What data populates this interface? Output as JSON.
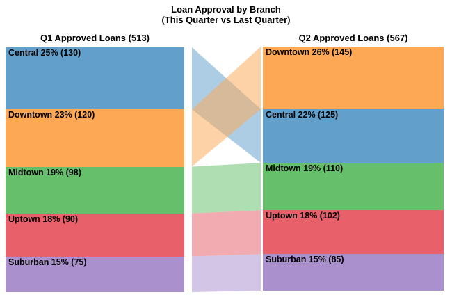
{
  "chart_data": {
    "type": "sankey",
    "title": "Loan Approval by Branch",
    "subtitle": "(This Quarter vs Last Quarter)",
    "background": "#ffffff",
    "text_color": "#000000",
    "ribbon_opacity": 0.52,
    "legend_position": "none",
    "branch_colors": {
      "Central": "#62a0cb",
      "Downtown": "#fca855",
      "Midtown": "#66bf6b",
      "Uptown": "#e7606a",
      "Suburban": "#ab90ce"
    },
    "columns": [
      {
        "header": "Q1 Approved Loans (513)",
        "total": 513,
        "segments": [
          {
            "branch": "Central",
            "percent": 25,
            "count": 130,
            "label": "Central 25% (130)",
            "color": "#62a0cb"
          },
          {
            "branch": "Downtown",
            "percent": 23,
            "count": 120,
            "label": "Downtown 23% (120)",
            "color": "#fca855"
          },
          {
            "branch": "Midtown",
            "percent": 19,
            "count": 98,
            "label": "Midtown 19% (98)",
            "color": "#66bf6b"
          },
          {
            "branch": "Uptown",
            "percent": 18,
            "count": 90,
            "label": "Uptown 18% (90)",
            "color": "#e7606a"
          },
          {
            "branch": "Suburban",
            "percent": 15,
            "count": 75,
            "label": "Suburban 15% (75)",
            "color": "#ab90ce"
          }
        ]
      },
      {
        "header": "Q2 Approved Loans (567)",
        "total": 567,
        "segments": [
          {
            "branch": "Downtown",
            "percent": 26,
            "count": 145,
            "label": "Downtown 26% (145)",
            "color": "#fca855"
          },
          {
            "branch": "Central",
            "percent": 22,
            "count": 125,
            "label": "Central 22% (125)",
            "color": "#62a0cb"
          },
          {
            "branch": "Midtown",
            "percent": 19,
            "count": 110,
            "label": "Midtown 19% (110)",
            "color": "#66bf6b"
          },
          {
            "branch": "Uptown",
            "percent": 18,
            "count": 102,
            "label": "Uptown 18% (102)",
            "color": "#e7606a"
          },
          {
            "branch": "Suburban",
            "percent": 15,
            "count": 85,
            "label": "Suburban 15% (85)",
            "color": "#ab90ce"
          }
        ]
      }
    ],
    "flows": [
      {
        "branch": "Central",
        "q1": 130,
        "q2": 125
      },
      {
        "branch": "Downtown",
        "q1": 120,
        "q2": 145
      },
      {
        "branch": "Midtown",
        "q1": 98,
        "q2": 110
      },
      {
        "branch": "Uptown",
        "q1": 90,
        "q2": 102
      },
      {
        "branch": "Suburban",
        "q1": 75,
        "q2": 85
      }
    ]
  }
}
